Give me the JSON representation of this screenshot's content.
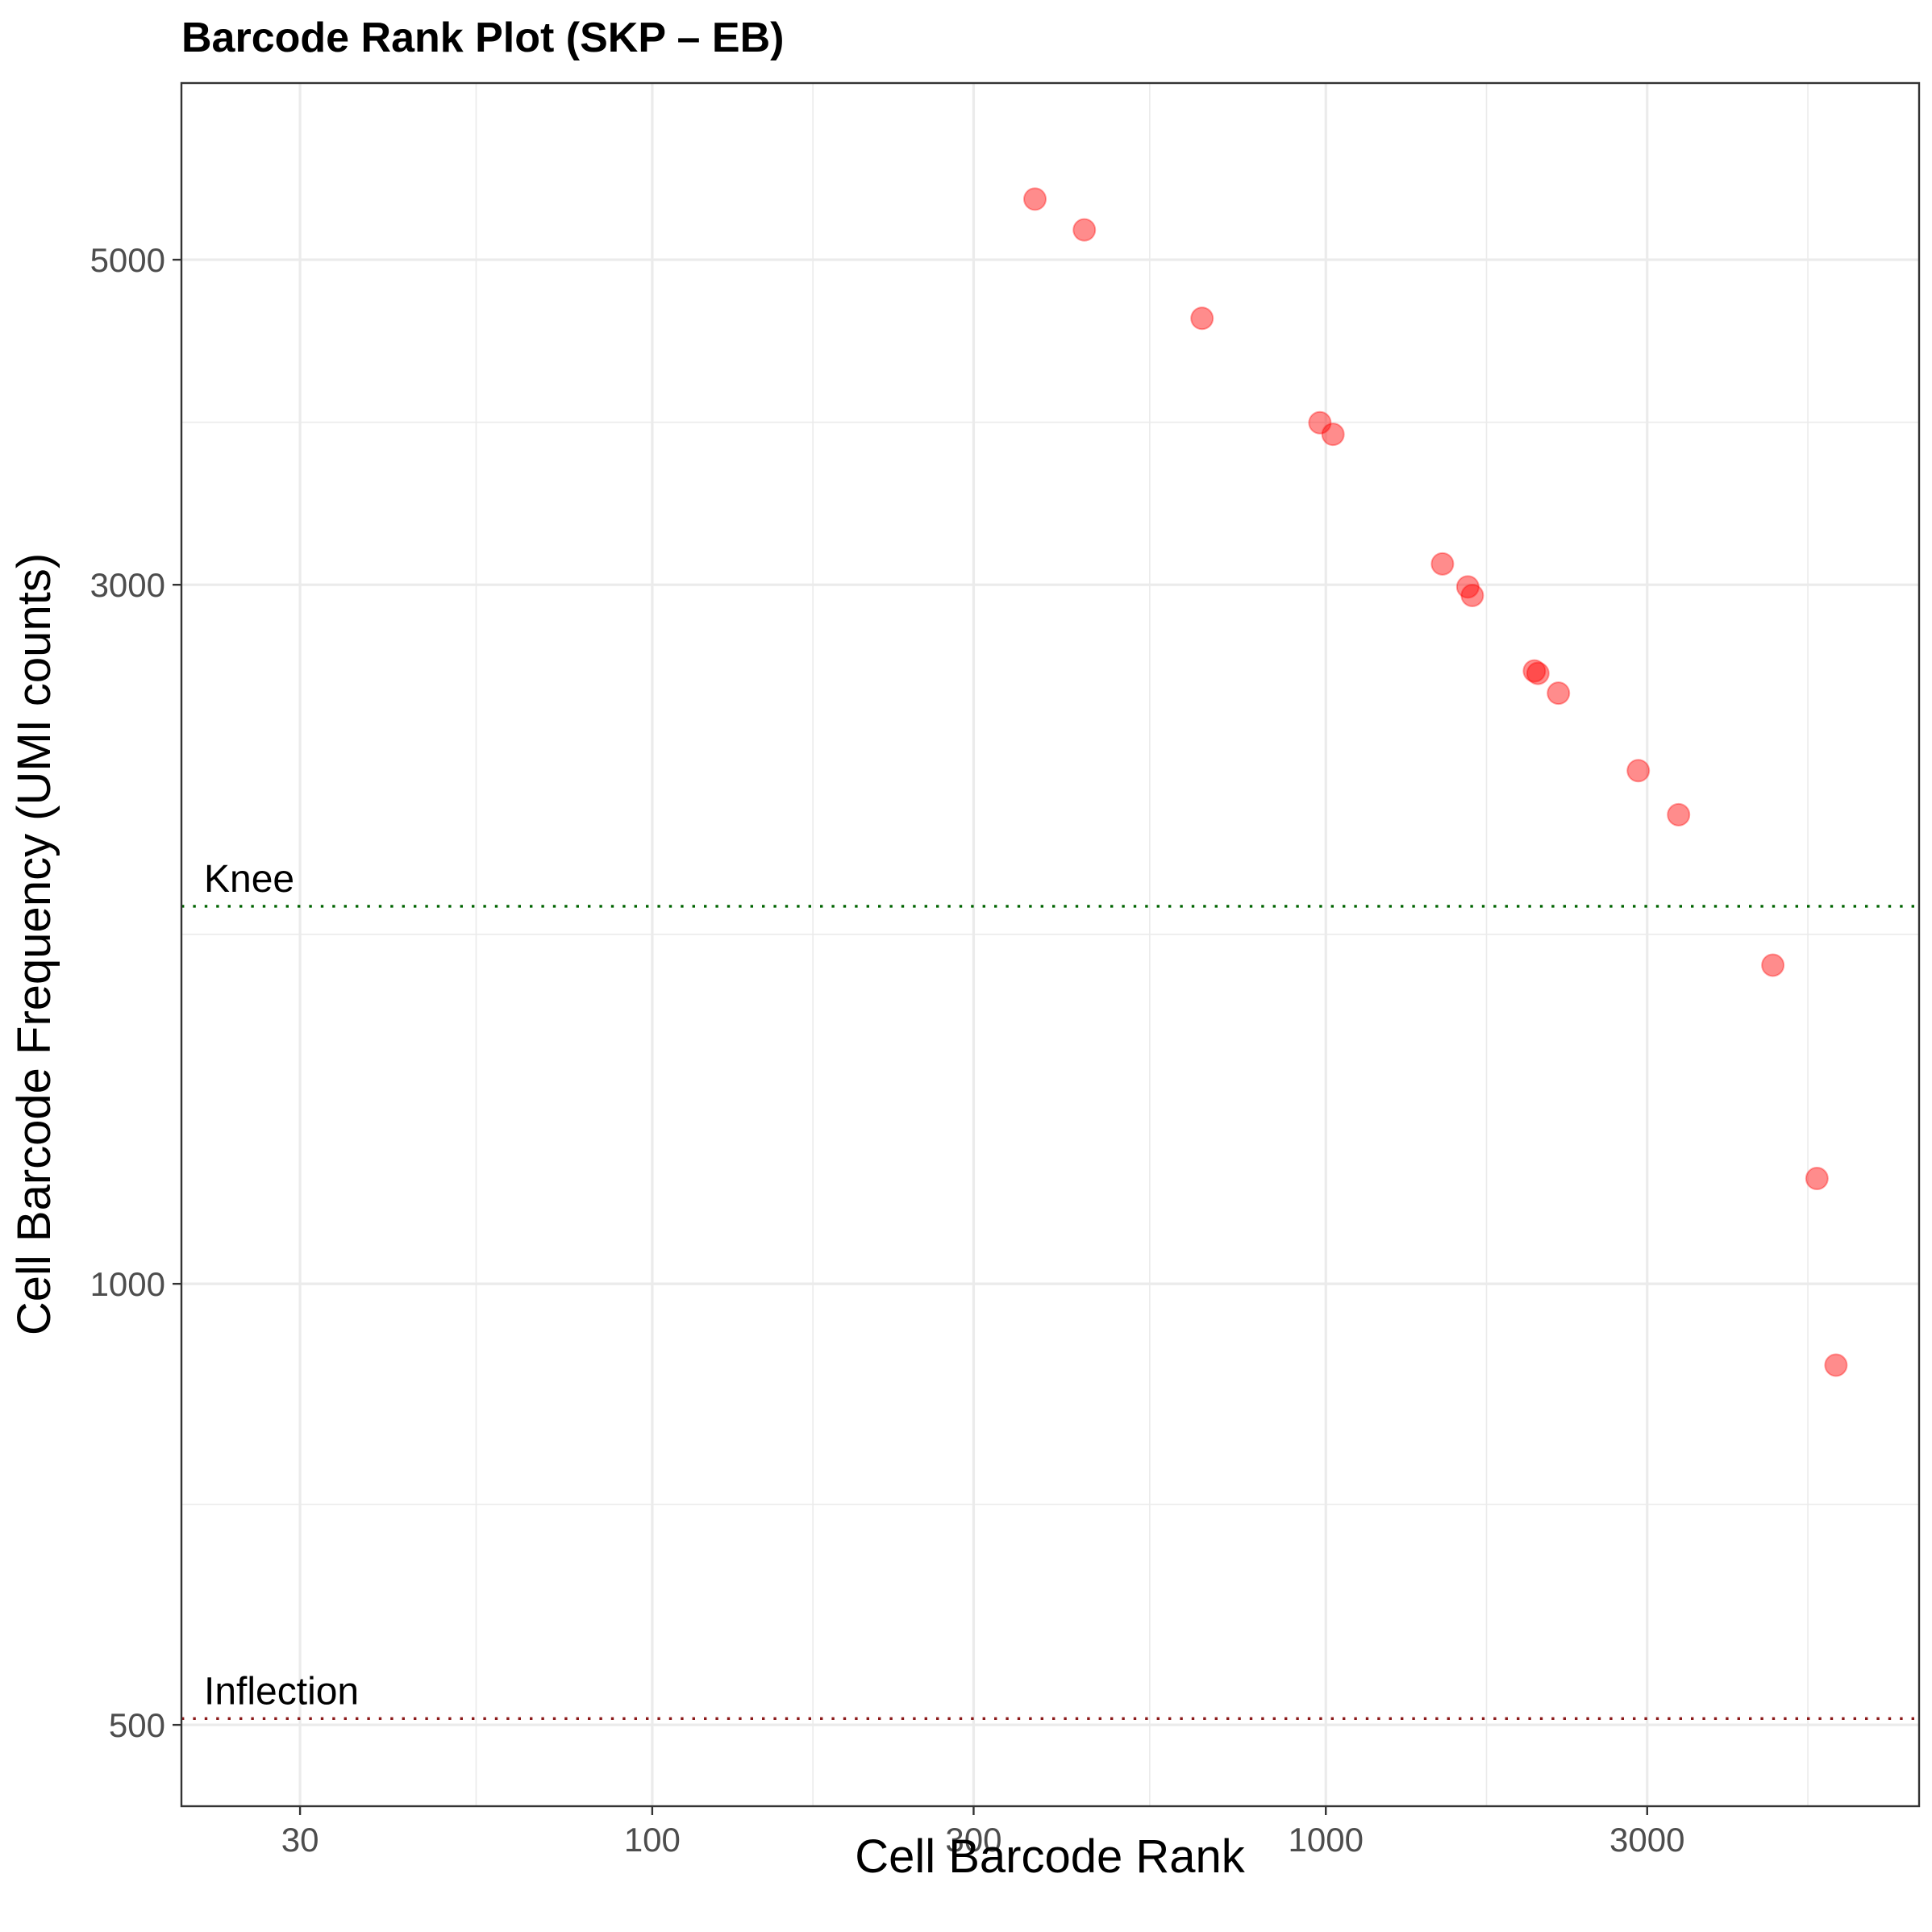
{
  "chart_data": {
    "type": "scatter",
    "title": "Barcode Rank Plot (SKP – EB)",
    "xlabel": "Cell Barcode Rank",
    "ylabel": "Cell Barcode Frequency (UMI counts)",
    "x_scale": "log10",
    "y_scale": "log10",
    "xlim": [
      20,
      7600
    ],
    "ylim": [
      440,
      6600
    ],
    "x_ticks": [
      30,
      100,
      300,
      1000,
      3000
    ],
    "x_tick_labels": [
      "30",
      "100",
      "300",
      "1000",
      "3000"
    ],
    "y_ticks": [
      500,
      1000,
      3000,
      5000
    ],
    "y_tick_labels": [
      "500",
      "1000",
      "3000",
      "5000"
    ],
    "grid": true,
    "point_color": "#ff0000",
    "points": [
      {
        "x": 370,
        "y": 5500
      },
      {
        "x": 438,
        "y": 5240
      },
      {
        "x": 655,
        "y": 4560
      },
      {
        "x": 980,
        "y": 3870
      },
      {
        "x": 1025,
        "y": 3800
      },
      {
        "x": 1490,
        "y": 3100
      },
      {
        "x": 1625,
        "y": 2990
      },
      {
        "x": 1650,
        "y": 2950
      },
      {
        "x": 2040,
        "y": 2620
      },
      {
        "x": 2065,
        "y": 2610
      },
      {
        "x": 2215,
        "y": 2530
      },
      {
        "x": 2910,
        "y": 2240
      },
      {
        "x": 3340,
        "y": 2090
      },
      {
        "x": 4610,
        "y": 1650
      },
      {
        "x": 5360,
        "y": 1180
      },
      {
        "x": 5720,
        "y": 880
      }
    ],
    "reference_lines": [
      {
        "name": "Knee",
        "y": 1810,
        "color": "#006400"
      },
      {
        "name": "Inflection",
        "y": 505,
        "color": "#8b1a1a"
      }
    ]
  }
}
